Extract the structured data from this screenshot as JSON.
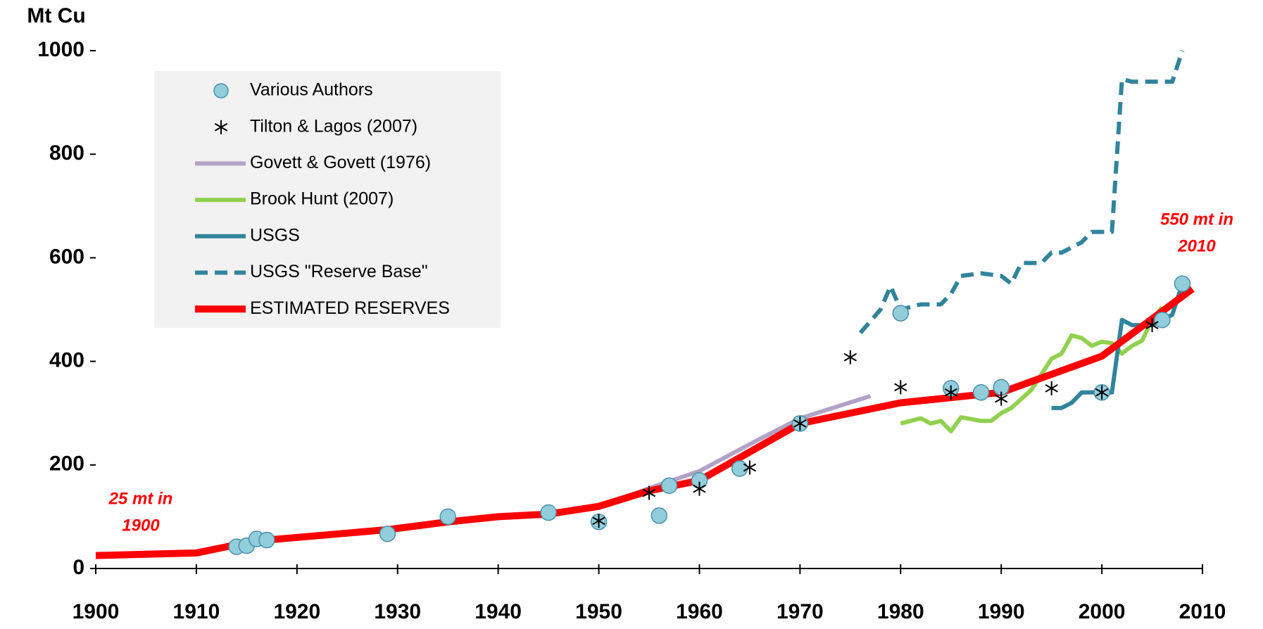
{
  "chart_data": {
    "type": "line",
    "y_label": "Mt Cu",
    "xlim": [
      1900,
      2010
    ],
    "xticks": [
      1900,
      1910,
      1920,
      1930,
      1940,
      1950,
      1960,
      1970,
      1980,
      1990,
      2000,
      2010
    ],
    "ylim": [
      0,
      1000
    ],
    "yticks": [
      0,
      200,
      400,
      600,
      800,
      1000
    ],
    "legend": "upper left",
    "series": [
      {
        "name": "Various Authors",
        "style": "circle",
        "color": "#92cddc",
        "x": [
          1914,
          1915,
          1916,
          1917,
          1929,
          1935,
          1945,
          1950,
          1956,
          1957,
          1960,
          1964,
          1970,
          1980,
          1985,
          1988,
          1990,
          2000,
          2006,
          2008
        ],
        "values": [
          42,
          44,
          57,
          55,
          67,
          100,
          108,
          90,
          102,
          160,
          170,
          193,
          280,
          493,
          348,
          340,
          350,
          340,
          480,
          550
        ]
      },
      {
        "name": "Tilton & Lagos (2007)",
        "style": "star",
        "color": "#000000",
        "x": [
          1950,
          1955,
          1960,
          1965,
          1970,
          1975,
          1980,
          1985,
          1990,
          1995,
          2000,
          2005
        ],
        "values": [
          92,
          146,
          154,
          195,
          280,
          408,
          350,
          340,
          328,
          348,
          340,
          470
        ]
      },
      {
        "name": "Govett & Govett (1976)",
        "style": "solid",
        "color": "#b3a2c7",
        "x": [
          1950,
          1955,
          1960,
          1965,
          1970,
          1977
        ],
        "values": [
          120,
          155,
          188,
          240,
          290,
          333
        ]
      },
      {
        "name": "Brook Hunt (2007)",
        "style": "solid",
        "color": "#92d050",
        "x": [
          1980,
          1982,
          1983,
          1984,
          1985,
          1986,
          1988,
          1989,
          1990,
          1991,
          1993,
          1995,
          1996,
          1997,
          1998,
          1999,
          2000,
          2001,
          2002,
          2003,
          2004,
          2005,
          2006
        ],
        "values": [
          280,
          290,
          280,
          285,
          265,
          292,
          285,
          285,
          300,
          310,
          345,
          405,
          415,
          450,
          445,
          430,
          438,
          435,
          415,
          430,
          440,
          480,
          505
        ]
      },
      {
        "name": "USGS",
        "style": "solid",
        "color": "#31849b",
        "x": [
          1995,
          1996,
          1997,
          1998,
          1999,
          2000,
          2001,
          2002,
          2003,
          2004,
          2005,
          2006,
          2007,
          2008
        ],
        "values": [
          310,
          310,
          320,
          340,
          340,
          340,
          340,
          480,
          470,
          470,
          470,
          480,
          490,
          550
        ]
      },
      {
        "name": "USGS \"Reserve Base\"",
        "style": "dashed",
        "color": "#31849b",
        "x": [
          1976,
          1978,
          1979,
          1980,
          1982,
          1984,
          1985,
          1986,
          1988,
          1990,
          1991,
          1992,
          1994,
          1995,
          1996,
          1998,
          1999,
          2001,
          2002,
          2003,
          2007,
          2008
        ],
        "values": [
          455,
          500,
          545,
          500,
          510,
          510,
          530,
          565,
          570,
          565,
          550,
          590,
          590,
          610,
          610,
          630,
          650,
          650,
          945,
          940,
          940,
          1000
        ]
      },
      {
        "name": "ESTIMATED RESERVES",
        "style": "thick",
        "color": "#ff0000",
        "x": [
          1900,
          1910,
          1913,
          1917,
          1929,
          1935,
          1940,
          1945,
          1950,
          1955,
          1960,
          1970,
          1980,
          1990,
          2000,
          2009
        ],
        "values": [
          25,
          30,
          42,
          55,
          75,
          90,
          100,
          105,
          120,
          150,
          170,
          280,
          320,
          340,
          410,
          540
        ]
      }
    ],
    "annotations": [
      {
        "lines": [
          "25 mt in",
          "1900"
        ]
      },
      {
        "lines": [
          "550 mt in",
          "2010"
        ]
      }
    ]
  }
}
